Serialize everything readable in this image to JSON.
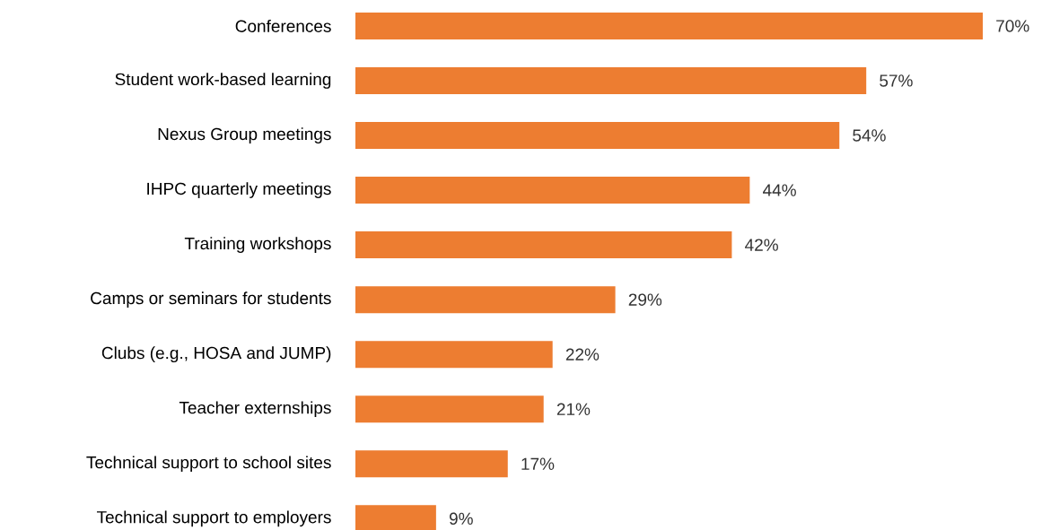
{
  "chart_data": {
    "type": "bar",
    "orientation": "horizontal",
    "categories": [
      "Conferences",
      "Student work-based learning",
      "Nexus Group meetings",
      "IHPC quarterly meetings",
      "Training workshops",
      "Camps or seminars for students",
      "Clubs (e.g., HOSA and JUMP)",
      "Teacher externships",
      "Technical support to school sites",
      "Technical support to employers"
    ],
    "values": [
      70,
      57,
      54,
      44,
      42,
      29,
      22,
      21,
      17,
      9
    ],
    "value_labels": [
      "70%",
      "57%",
      "54%",
      "44%",
      "42%",
      "29%",
      "22%",
      "21%",
      "17%",
      "9%"
    ],
    "color": "#ed7d31",
    "xlim": [
      0,
      70
    ],
    "tick_labels": "y"
  }
}
